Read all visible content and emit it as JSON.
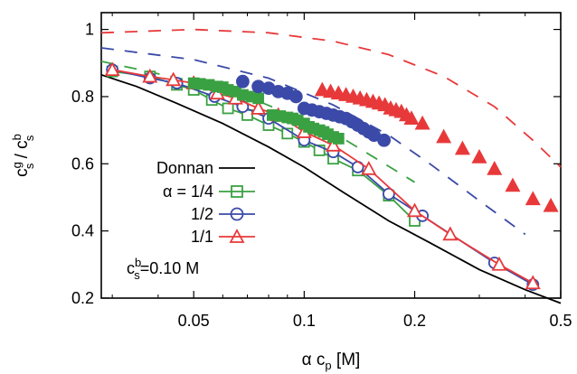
{
  "chart_data": {
    "type": "line",
    "xlabel": "α c",
    "xlabel_sub": "p",
    "xlabel_unit": " [M]",
    "ylabel": "c",
    "ylabel_sup1": "g",
    "ylabel_sub1": "s",
    "ylabel_mid": " / c",
    "ylabel_sup2": "b",
    "ylabel_sub2": "s",
    "x_scale": "log",
    "xlim": [
      0.028,
      0.5
    ],
    "ylim": [
      0.2,
      1.05
    ],
    "x_ticks": [
      0.05,
      0.1,
      0.2,
      0.5
    ],
    "x_tick_labels": [
      "0.05",
      "0.1",
      "0.2",
      "0.5"
    ],
    "y_ticks": [
      0.2,
      0.4,
      0.6,
      0.8,
      1.0
    ],
    "y_tick_labels": [
      "0.2",
      "0.4",
      "0.6",
      "0.8",
      "1"
    ],
    "annotation": {
      "prefix": "c",
      "sup": "b",
      "sub": "s",
      "suffix": "=0.10 M"
    },
    "legend": [
      {
        "label": "Donnan",
        "color": "#000000",
        "marker": "none"
      },
      {
        "label": "α = 1/4",
        "color": "#3aa142",
        "marker": "square"
      },
      {
        "label": "1/2",
        "color": "#3b4aa8",
        "marker": "circle"
      },
      {
        "label": "1/1",
        "color": "#e8393a",
        "marker": "triangle"
      }
    ],
    "series": [
      {
        "name": "Donnan",
        "color": "#000000",
        "style": "solid",
        "x": [
          0.028,
          0.035,
          0.045,
          0.06,
          0.08,
          0.1,
          0.13,
          0.17,
          0.22,
          0.3,
          0.4,
          0.5
        ],
        "y": [
          0.865,
          0.83,
          0.78,
          0.72,
          0.65,
          0.59,
          0.51,
          0.43,
          0.365,
          0.285,
          0.225,
          0.185
        ]
      },
      {
        "name": "α = 1/4",
        "color": "#3aa142",
        "style": "solid-markers",
        "marker": "square",
        "x": [
          0.03,
          0.038,
          0.045,
          0.05,
          0.056,
          0.062,
          0.07,
          0.08,
          0.09,
          0.1,
          0.11,
          0.12,
          0.14,
          0.17,
          0.2
        ],
        "y": [
          0.875,
          0.86,
          0.835,
          0.82,
          0.79,
          0.765,
          0.745,
          0.715,
          0.69,
          0.665,
          0.64,
          0.615,
          0.58,
          0.505,
          0.43
        ]
      },
      {
        "name": "α = 1/2",
        "color": "#3b4aa8",
        "style": "solid-markers",
        "marker": "circle",
        "x": [
          0.03,
          0.038,
          0.045,
          0.057,
          0.068,
          0.08,
          0.1,
          0.12,
          0.14,
          0.17,
          0.21,
          0.33,
          0.42
        ],
        "y": [
          0.88,
          0.855,
          0.84,
          0.8,
          0.77,
          0.735,
          0.67,
          0.635,
          0.59,
          0.51,
          0.445,
          0.305,
          0.24
        ]
      },
      {
        "name": "α = 1/1",
        "color": "#e8393a",
        "style": "solid-markers",
        "marker": "triangle",
        "x": [
          0.03,
          0.038,
          0.044,
          0.05,
          0.058,
          0.065,
          0.075,
          0.085,
          0.1,
          0.12,
          0.15,
          0.2,
          0.25,
          0.34,
          0.42
        ],
        "y": [
          0.88,
          0.86,
          0.85,
          0.84,
          0.81,
          0.795,
          0.765,
          0.745,
          0.695,
          0.655,
          0.585,
          0.46,
          0.39,
          0.3,
          0.245
        ]
      },
      {
        "name": "α = 1/4 filled",
        "color": "#3aa142",
        "style": "markers",
        "marker": "square-filled",
        "x": [
          0.05,
          0.052,
          0.055,
          0.058,
          0.06,
          0.062,
          0.065,
          0.068,
          0.072,
          0.075,
          0.082,
          0.086,
          0.09,
          0.093,
          0.096,
          0.1,
          0.103,
          0.106,
          0.11,
          0.113,
          0.116,
          0.12,
          0.124
        ],
        "y": [
          0.84,
          0.838,
          0.835,
          0.83,
          0.828,
          0.82,
          0.815,
          0.805,
          0.8,
          0.795,
          0.745,
          0.742,
          0.738,
          0.735,
          0.73,
          0.72,
          0.71,
          0.705,
          0.7,
          0.695,
          0.688,
          0.68,
          0.675
        ]
      },
      {
        "name": "α = 1/2 filled",
        "color": "#3b4aa8",
        "style": "markers",
        "marker": "circle-filled",
        "x": [
          0.068,
          0.075,
          0.08,
          0.085,
          0.09,
          0.095,
          0.1,
          0.105,
          0.11,
          0.115,
          0.12,
          0.125,
          0.13,
          0.135,
          0.14,
          0.145,
          0.15,
          0.155,
          0.165
        ],
        "y": [
          0.845,
          0.83,
          0.825,
          0.815,
          0.81,
          0.8,
          0.765,
          0.76,
          0.755,
          0.75,
          0.745,
          0.74,
          0.735,
          0.725,
          0.715,
          0.705,
          0.695,
          0.685,
          0.67
        ]
      },
      {
        "name": "α = 1/1 filled",
        "color": "#e8393a",
        "style": "markers",
        "marker": "triangle-filled",
        "x": [
          0.112,
          0.118,
          0.124,
          0.13,
          0.136,
          0.142,
          0.148,
          0.154,
          0.16,
          0.166,
          0.172,
          0.178,
          0.184,
          0.19,
          0.196,
          0.21,
          0.24,
          0.27,
          0.3,
          0.33,
          0.37,
          0.42,
          0.47
        ],
        "y": [
          0.82,
          0.815,
          0.81,
          0.805,
          0.8,
          0.795,
          0.79,
          0.785,
          0.78,
          0.775,
          0.765,
          0.76,
          0.755,
          0.745,
          0.735,
          0.72,
          0.68,
          0.645,
          0.62,
          0.585,
          0.535,
          0.495,
          0.475
        ]
      },
      {
        "name": "α = 1/4 dashed",
        "color": "#3aa142",
        "style": "dashed",
        "x": [
          0.028,
          0.05,
          0.07,
          0.1,
          0.13,
          0.16,
          0.2
        ],
        "y": [
          0.905,
          0.845,
          0.8,
          0.73,
          0.67,
          0.61,
          0.545
        ]
      },
      {
        "name": "α = 1/2 dashed",
        "color": "#3b4aa8",
        "style": "dashed",
        "x": [
          0.028,
          0.05,
          0.08,
          0.12,
          0.17,
          0.22,
          0.3,
          0.4
        ],
        "y": [
          0.945,
          0.91,
          0.855,
          0.775,
          0.685,
          0.6,
          0.49,
          0.39
        ]
      },
      {
        "name": "α = 1/1 dashed",
        "color": "#e8393a",
        "style": "dashed",
        "x": [
          0.028,
          0.05,
          0.08,
          0.12,
          0.17,
          0.24,
          0.33,
          0.42,
          0.5
        ],
        "y": [
          0.99,
          1.0,
          0.99,
          0.965,
          0.925,
          0.86,
          0.77,
          0.67,
          0.59
        ]
      }
    ]
  }
}
